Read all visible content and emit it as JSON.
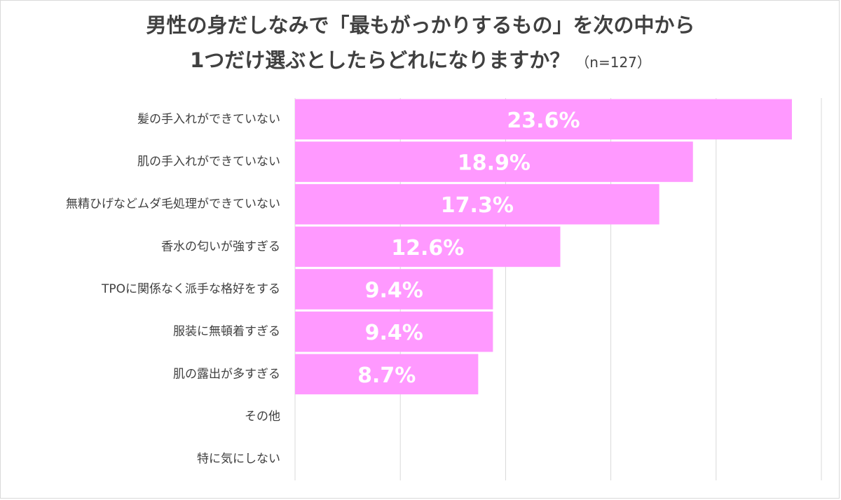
{
  "chart_data": {
    "type": "bar",
    "orientation": "horizontal",
    "title_line1": "男性の身だしなみで「最もがっかりするもの」を次の中から",
    "title_line2": "1つだけ選ぶとしたらどれになりますか？",
    "subtitle": "（n=127）",
    "categories": [
      "髪の手入れができていない",
      "肌の手入れができていない",
      "無精ひげなどムダ毛処理ができていない",
      "香水の匂いが強すぎる",
      "TPOに関係なく派手な格好をする",
      "服装に無頓着すぎる",
      "肌の露出が多すぎる",
      "その他",
      "特に気にしない"
    ],
    "values": [
      23.6,
      18.9,
      17.3,
      12.6,
      9.4,
      9.4,
      8.7,
      0,
      0
    ],
    "data_labels": [
      "23.6%",
      "18.9%",
      "17.3%",
      "12.6%",
      "9.4%",
      "9.4%",
      "8.7%",
      "",
      ""
    ],
    "xlim": [
      0,
      25
    ],
    "grid": true,
    "bar_color": "#ff99ff",
    "gridline_color": "#d9d9d9"
  }
}
